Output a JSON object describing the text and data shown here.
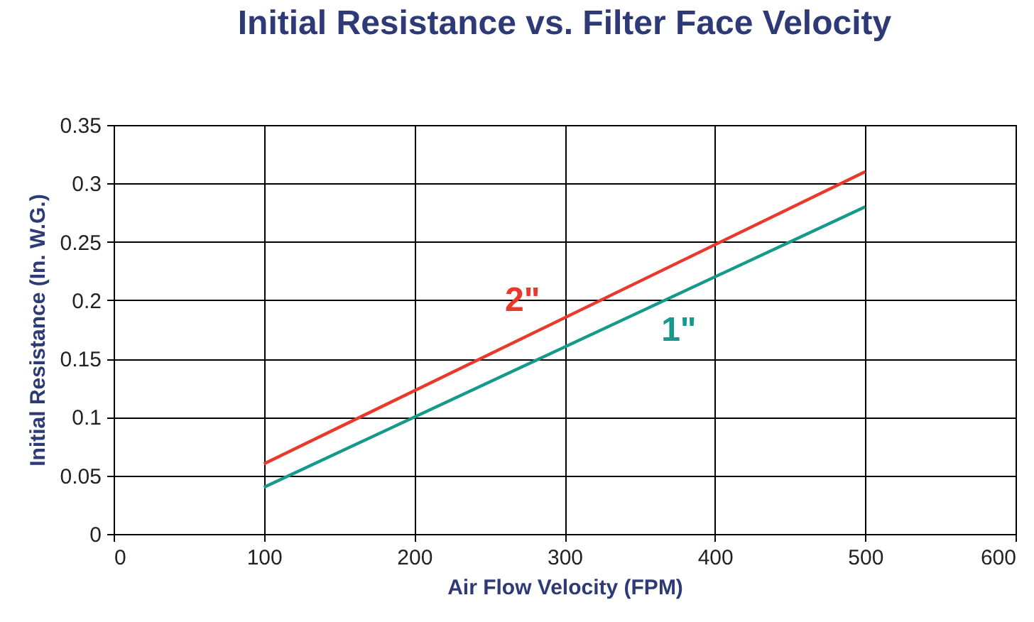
{
  "chart_data": {
    "type": "line",
    "title": "Initial Resistance vs. Filter Face Velocity",
    "xlabel": "Air Flow Velocity (FPM)",
    "ylabel": "Initial Resistance (In. W.G.)",
    "x": [
      100,
      500
    ],
    "series": [
      {
        "name": "2\"",
        "color": "#e8392b",
        "values": [
          0.06,
          0.31
        ]
      },
      {
        "name": "1\"",
        "color": "#14998a",
        "values": [
          0.04,
          0.28
        ]
      }
    ],
    "xlim": [
      0,
      600
    ],
    "xticks": [
      0,
      100,
      200,
      300,
      400,
      500,
      600
    ],
    "ylim": [
      0,
      0.35
    ],
    "yticks": [
      0,
      0.05,
      0.1,
      0.15,
      0.2,
      0.25,
      0.3,
      0.35
    ],
    "grid": true,
    "legend": false,
    "marker": "none",
    "line_style": "solid"
  }
}
